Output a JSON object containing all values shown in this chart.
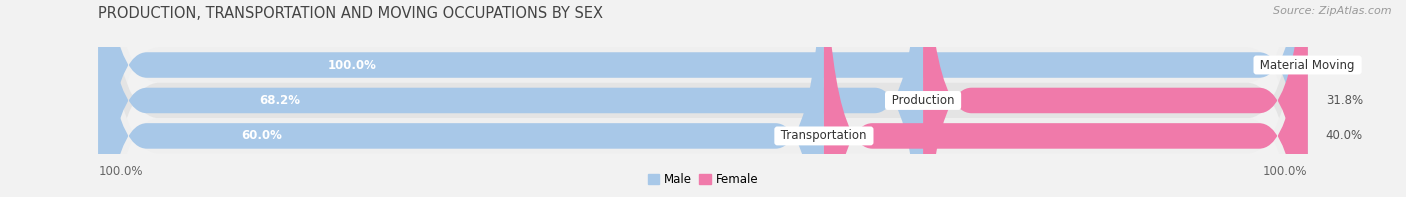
{
  "title": "PRODUCTION, TRANSPORTATION AND MOVING OCCUPATIONS BY SEX",
  "source": "Source: ZipAtlas.com",
  "categories": [
    "Material Moving",
    "Production",
    "Transportation"
  ],
  "male_values": [
    100.0,
    68.2,
    60.0
  ],
  "female_values": [
    0.0,
    31.8,
    40.0
  ],
  "male_color": "#a8c8e8",
  "female_color": "#f07aaa",
  "female_color_light": "#f9b8d0",
  "row_bg_odd": "#efefef",
  "row_bg_even": "#e4e4e4",
  "fig_bg": "#f2f2f2",
  "title_fontsize": 10.5,
  "source_fontsize": 8,
  "bar_label_fontsize": 8.5,
  "category_fontsize": 8.5,
  "x_label_fontsize": 8.5,
  "x_left_label": "100.0%",
  "x_right_label": "100.0%",
  "legend_male": "Male",
  "legend_female": "Female",
  "figsize": [
    14.06,
    1.97
  ],
  "dpi": 100
}
